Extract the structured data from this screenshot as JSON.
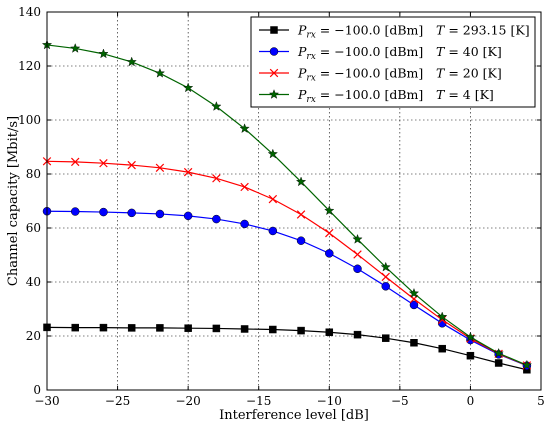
{
  "chart_data": {
    "type": "line",
    "xlabel": "Interference level [dB]",
    "ylabel": "Channel capacity [Mbit/s]",
    "xlim": [
      -30,
      5
    ],
    "ylim": [
      0,
      140
    ],
    "xticks": [
      -30,
      -25,
      -20,
      -15,
      -10,
      -5,
      0,
      5
    ],
    "yticks": [
      0,
      20,
      40,
      60,
      80,
      100,
      120,
      140
    ],
    "x_tick_labels": [
      "−30",
      "−25",
      "−20",
      "−15",
      "−10",
      "−5",
      "0",
      "5"
    ],
    "y_tick_labels": [
      "0",
      "20",
      "40",
      "60",
      "80",
      "100",
      "120",
      "140"
    ],
    "grid": true,
    "legend_position": "top-right",
    "x": [
      -30,
      -28,
      -26,
      -24,
      -22,
      -20,
      -18,
      -16,
      -14,
      -12,
      -10,
      -8,
      -6,
      -4,
      -2,
      0,
      2,
      4
    ],
    "series": [
      {
        "name": "Prx = −100.0 [dBm]   T = 293.15 [K]",
        "legend_left": "−100.0",
        "legend_left_unit": "[dBm]",
        "legend_right": "293.15",
        "legend_right_unit": "[K]",
        "color": "#000000",
        "marker": "square",
        "values": [
          23.2,
          23.1,
          23.1,
          23.0,
          23.0,
          22.9,
          22.8,
          22.6,
          22.4,
          22.0,
          21.4,
          20.5,
          19.2,
          17.5,
          15.3,
          12.7,
          10.0,
          7.5
        ]
      },
      {
        "name": "Prx = −100.0 [dBm]   T = 40 [K]",
        "legend_left": "−100.0",
        "legend_left_unit": "[dBm]",
        "legend_right": "40",
        "legend_right_unit": "[K]",
        "color": "#0000ff",
        "marker": "circle",
        "values": [
          66.2,
          66.1,
          65.9,
          65.6,
          65.2,
          64.5,
          63.3,
          61.5,
          58.9,
          55.3,
          50.6,
          44.9,
          38.4,
          31.5,
          24.7,
          18.5,
          13.2,
          9.0
        ]
      },
      {
        "name": "Prx = −100.0 [dBm]   T = 20 [K]",
        "legend_left": "−100.0",
        "legend_left_unit": "[dBm]",
        "legend_right": "20",
        "legend_right_unit": "[K]",
        "color": "#ff0000",
        "marker": "x",
        "values": [
          84.7,
          84.5,
          84.0,
          83.3,
          82.3,
          80.7,
          78.4,
          75.2,
          70.7,
          65.0,
          58.1,
          50.2,
          41.9,
          33.7,
          26.0,
          19.1,
          13.4,
          9.1
        ]
      },
      {
        "name": "Prx = −100.0 [dBm]   T = 4 [K]",
        "legend_left": "−100.0",
        "legend_left_unit": "[dBm]",
        "legend_right": "4",
        "legend_right_unit": "[K]",
        "color": "#006400",
        "marker": "star",
        "values": [
          127.8,
          126.5,
          124.5,
          121.5,
          117.3,
          111.9,
          105.0,
          96.8,
          87.4,
          77.1,
          66.4,
          55.8,
          45.5,
          35.8,
          27.1,
          19.6,
          13.6,
          9.2
        ]
      }
    ]
  }
}
